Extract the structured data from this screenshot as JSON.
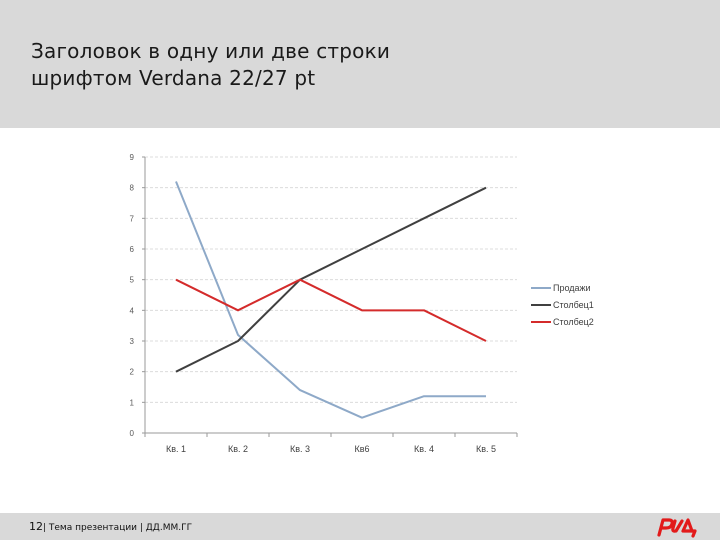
{
  "slide": {
    "title": "Заголовок в одну или две строки\nшрифтом Verdana 22/27 pt",
    "footer": {
      "page_number": "12",
      "text": "| Тема презентации | ДД.ММ.ГГ"
    },
    "logo": "rzd-logo"
  },
  "colors": {
    "header_bg": "#d9d9d9",
    "logo_red": "#e21a1a"
  },
  "chart_data": {
    "type": "line",
    "categories": [
      "Кв. 1",
      "Кв. 2",
      "Кв. 3",
      "Кв6",
      "Кв. 4",
      "Кв. 5"
    ],
    "ylim": [
      0,
      9
    ],
    "yticks": [
      "0",
      "1",
      "2",
      "3",
      "4",
      "5",
      "6",
      "7",
      "8",
      "9"
    ],
    "grid": true,
    "legend_position": "right",
    "series": [
      {
        "name": "Продажи",
        "color": "#8ea9c8",
        "values": [
          8.2,
          3.2,
          1.4,
          0.5,
          1.2,
          1.2
        ]
      },
      {
        "name": "Столбец1",
        "color": "#404040",
        "values": [
          2,
          3,
          5,
          6,
          7,
          8
        ]
      },
      {
        "name": "Столбец2",
        "color": "#d42b2b",
        "values": [
          5,
          4,
          5,
          4,
          4,
          3
        ]
      }
    ]
  }
}
